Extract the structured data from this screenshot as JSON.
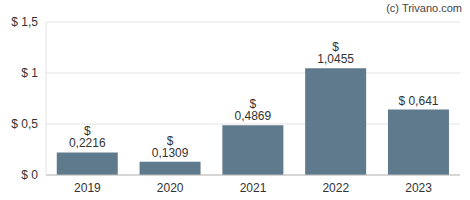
{
  "chart_data": {
    "type": "bar",
    "annotations": [
      "(c) Trivano.com"
    ],
    "categories": [
      "2019",
      "2020",
      "2021",
      "2022",
      "2023"
    ],
    "values": [
      0.2216,
      0.1309,
      0.4869,
      1.0455,
      0.641
    ],
    "value_labels": [
      "$ 0,2216",
      "$ 0,1309",
      "$ 0,4869",
      "$ 1,0455",
      "$ 0,641"
    ],
    "data_labels": true,
    "color": "#5f7a8c",
    "ylim": [
      0,
      1.5
    ],
    "yticks": [
      {
        "value": 0,
        "label": "$ 0"
      },
      {
        "value": 0.5,
        "label": "$ 0,5"
      },
      {
        "value": 1,
        "label": "$ 1"
      },
      {
        "value": 1.5,
        "label": "$ 1,5"
      }
    ],
    "grid": true
  }
}
